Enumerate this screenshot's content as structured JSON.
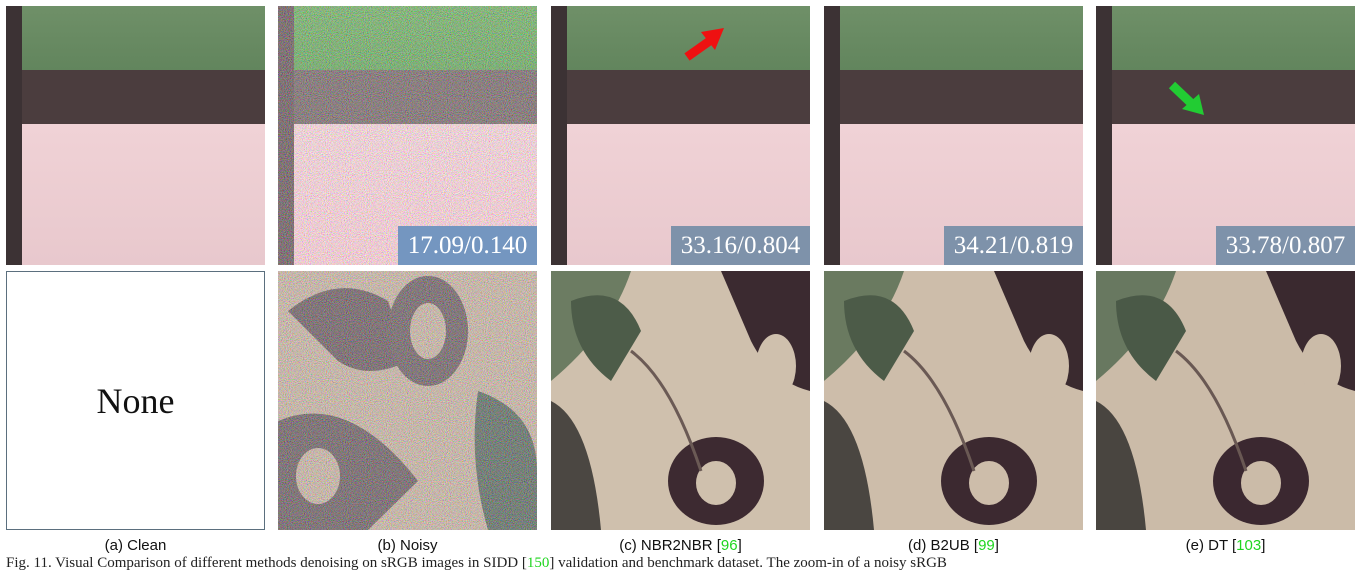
{
  "panels": [
    {
      "caption_prefix": "(a) Clean",
      "ref": "",
      "ref_suffix": "",
      "metric": "",
      "placeholder": "None"
    },
    {
      "caption_prefix": "(b) Noisy",
      "ref": "",
      "ref_suffix": "",
      "metric": "17.09/0.140"
    },
    {
      "caption_prefix": "(c) NBR2NBR [",
      "ref": "96",
      "ref_suffix": "]",
      "metric": "33.16/0.804"
    },
    {
      "caption_prefix": "(d) B2UB [",
      "ref": "99",
      "ref_suffix": "]",
      "metric": "34.21/0.819"
    },
    {
      "caption_prefix": "(e) DT [",
      "ref": "103",
      "ref_suffix": "]",
      "metric": "33.78/0.807"
    }
  ],
  "footer": {
    "fig": "Fig. 11. Visual Comparison of different methods denoising on sRGB images in SIDD [",
    "ref": "150",
    "rest": "] validation and benchmark dataset. The zoom-in of a noisy sRGB"
  },
  "arrows": {
    "red": "#ee1111",
    "green": "#22cc33"
  }
}
